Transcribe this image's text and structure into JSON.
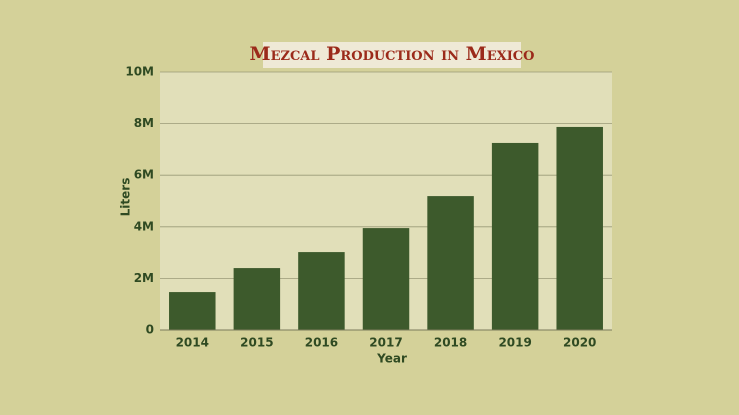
{
  "chart_data": {
    "type": "bar",
    "title": "Mezcal Production in Mexico",
    "x_label": "Year",
    "y_label": "Liters",
    "categories": [
      "2014",
      "2015",
      "2016",
      "2017",
      "2018",
      "2019",
      "2020"
    ],
    "values": [
      1470000,
      2400000,
      3020000,
      3950000,
      5190000,
      7250000,
      7870000
    ],
    "color": "#3d5a2c",
    "ylim": [
      0,
      10000000
    ],
    "yticks": [
      0,
      {
        "value": 2000000,
        "label": "2M"
      },
      {
        "value": 4000000,
        "label": "4M"
      },
      {
        "value": 6000000,
        "label": "6M"
      },
      {
        "value": 8000000,
        "label": "8M"
      },
      {
        "value": 10000000,
        "label": "10M"
      }
    ],
    "grid": true
  }
}
